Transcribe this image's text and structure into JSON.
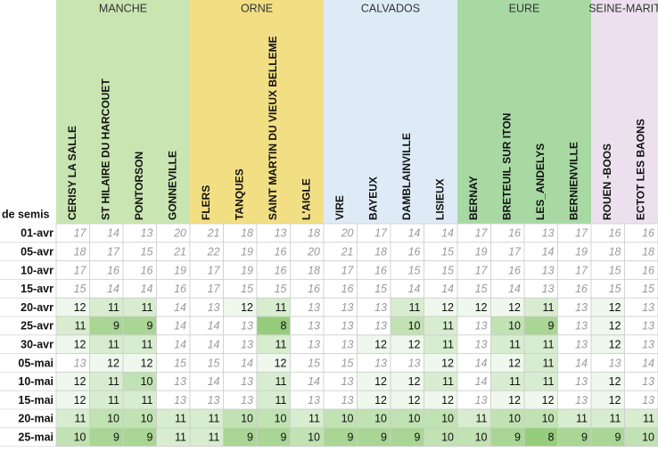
{
  "header_label": "de semis",
  "regions": [
    {
      "name": "MANCHE",
      "columns": [
        "CERISY LA SALLE",
        "ST HILAIRE DU HARCOUET",
        "PONTORSON",
        "GONNEVILLE"
      ]
    },
    {
      "name": "ORNE",
      "columns": [
        "FLERS",
        "TANQUES",
        "SAINT MARTIN DU VIEUX BELLEME",
        "L'AIGLE"
      ]
    },
    {
      "name": "CALVADOS",
      "columns": [
        "VIRE",
        "BAYEUX",
        "DAMBLAINVILLE",
        "LISIEUX"
      ]
    },
    {
      "name": "EURE",
      "columns": [
        "BERNAY",
        "BRETEUIL SUR ITON",
        "LES_ANDELYS",
        "BERNIENVILLE"
      ]
    },
    {
      "name": "SEINE-MARIT",
      "columns": [
        "ROUEN -BOOS",
        "ECTOT LES BAONS"
      ]
    }
  ],
  "rows": [
    {
      "date": "01-avr",
      "values": [
        17,
        14,
        13,
        20,
        21,
        18,
        13,
        18,
        20,
        17,
        14,
        14,
        17,
        16,
        13,
        17,
        16,
        16
      ]
    },
    {
      "date": "05-avr",
      "values": [
        18,
        17,
        15,
        21,
        22,
        19,
        16,
        20,
        21,
        18,
        16,
        15,
        19,
        17,
        14,
        19,
        18,
        18
      ]
    },
    {
      "date": "10-avr",
      "values": [
        17,
        16,
        16,
        19,
        17,
        19,
        16,
        18,
        17,
        16,
        15,
        15,
        17,
        16,
        13,
        17,
        15,
        16
      ]
    },
    {
      "date": "15-avr",
      "values": [
        15,
        14,
        14,
        16,
        17,
        15,
        15,
        16,
        16,
        15,
        14,
        14,
        15,
        14,
        13,
        16,
        15,
        15
      ]
    },
    {
      "date": "20-avr",
      "values": [
        12,
        11,
        11,
        14,
        13,
        12,
        11,
        13,
        13,
        13,
        11,
        12,
        12,
        12,
        11,
        13,
        12,
        13
      ]
    },
    {
      "date": "25-avr",
      "values": [
        11,
        9,
        9,
        14,
        14,
        13,
        8,
        13,
        13,
        13,
        10,
        11,
        13,
        10,
        9,
        13,
        12,
        13
      ]
    },
    {
      "date": "30-avr",
      "values": [
        12,
        11,
        11,
        14,
        14,
        13,
        11,
        13,
        13,
        12,
        12,
        11,
        13,
        11,
        11,
        13,
        12,
        13
      ]
    },
    {
      "date": "05-mai",
      "values": [
        13,
        12,
        12,
        15,
        15,
        14,
        12,
        15,
        15,
        13,
        13,
        12,
        14,
        12,
        11,
        14,
        13,
        14
      ]
    },
    {
      "date": "10-mai",
      "values": [
        12,
        11,
        10,
        13,
        14,
        13,
        11,
        14,
        13,
        12,
        12,
        11,
        14,
        11,
        11,
        13,
        12,
        13
      ]
    },
    {
      "date": "15-mai",
      "values": [
        12,
        11,
        11,
        13,
        13,
        13,
        11,
        13,
        13,
        12,
        12,
        12,
        13,
        12,
        12,
        13,
        12,
        13
      ]
    },
    {
      "date": "20-mai",
      "values": [
        11,
        10,
        10,
        11,
        11,
        10,
        10,
        11,
        10,
        10,
        10,
        10,
        11,
        10,
        10,
        11,
        11,
        11
      ]
    },
    {
      "date": "25-mai",
      "values": [
        10,
        9,
        9,
        11,
        11,
        9,
        9,
        10,
        9,
        9,
        9,
        10,
        10,
        9,
        8,
        9,
        9,
        10
      ]
    }
  ]
}
